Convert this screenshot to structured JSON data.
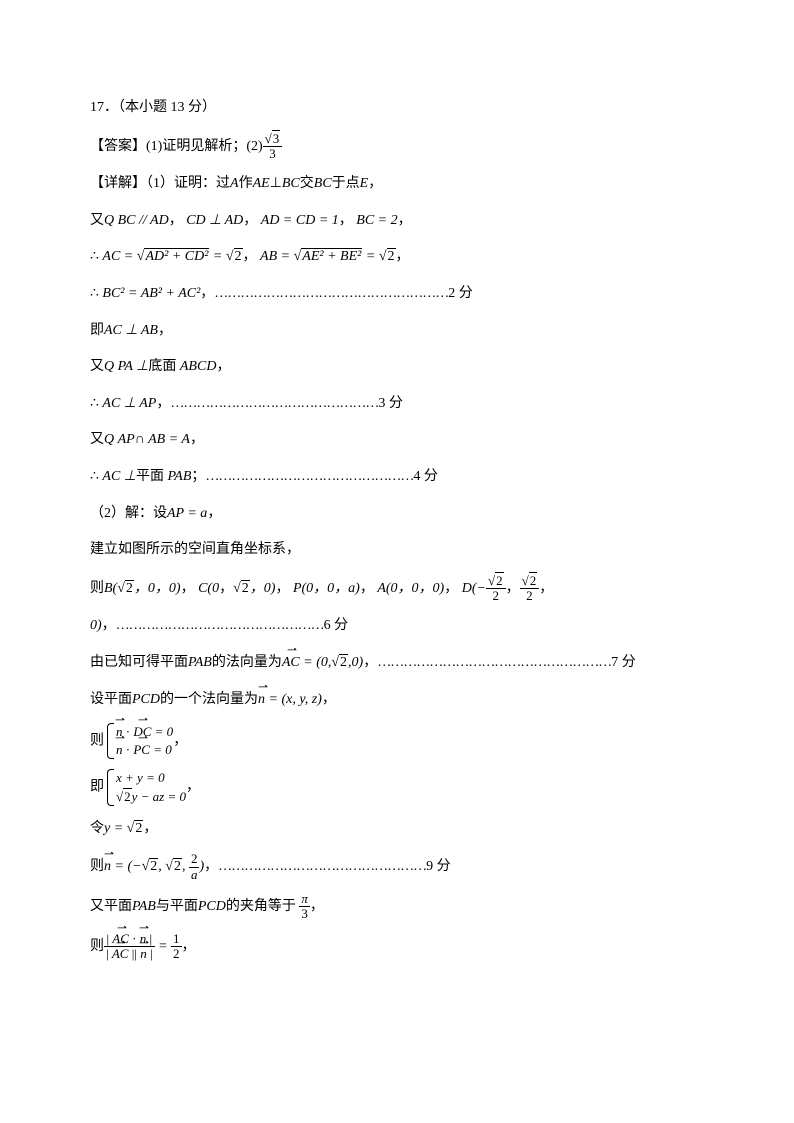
{
  "title": "17．（本小题 13 分）",
  "answer_label": "【答案】",
  "answer_p1": "(1)证明见解析；(2)",
  "detail_label": "【详解】",
  "proof_intro": "（1）证明：过",
  "l1_a": "A",
  "l1_b": "作",
  "l1_c": "AE",
  "l1_d": "⊥",
  "l1_e": "BC",
  "l1_f": "交",
  "l1_g": "BC",
  "l1_h": "于点",
  "l1_i": "E",
  "l1_j": "，",
  "l2_a": "又",
  "l2_b": "Q",
  "l2_c": "BC // AD",
  "l2_d": "，",
  "l2_e": "CD ⊥ AD",
  "l2_f": "，",
  "l2_g": "AD = CD = 1",
  "l2_h": "，",
  "l2_i": "BC = 2",
  "l2_j": "，",
  "l3_a": "∴",
  "l3_b": "AC = ",
  "l3_c": "AD² + CD²",
  "l3_d": " = ",
  "l3_e": "2",
  "l3_f": "，",
  "l3_g": "AB = ",
  "l3_h": "AE² + BE²",
  "l3_i": " = ",
  "l3_j": "2",
  "l3_k": "，",
  "l4_a": "∴",
  "l4_b": "BC² = AB² + AC²",
  "l4_c": "，",
  "l4_dots": "………………………………………………",
  "l4_score": "2 分",
  "l5_a": "即",
  "l5_b": "AC ⊥ AB",
  "l5_c": "，",
  "l6_a": "又",
  "l6_b": "Q",
  "l6_c": "PA ⊥",
  "l6_d": "底面",
  "l6_e": "ABCD",
  "l6_f": "，",
  "l7_a": "∴",
  "l7_b": "AC ⊥ AP",
  "l7_c": "，",
  "l7_dots": "…………………………………………",
  "l7_score": "3 分",
  "l8_a": "又",
  "l8_b": "Q",
  "l8_c": "AP",
  "l8_d": "∩",
  "l8_e": " AB = A",
  "l8_f": "，",
  "l9_a": "∴",
  "l9_b": "AC ⊥",
  "l9_c": "平面",
  "l9_d": "PAB",
  "l9_e": "；",
  "l9_dots": "…………………………………………",
  "l9_score": "4 分",
  "l10_a": "（2）解：设",
  "l10_b": "AP = a",
  "l10_c": "，",
  "l11": "建立如图所示的空间直角坐标系，",
  "l12_a": "则",
  "l12_b": "B(",
  "l12_c": "2",
  "l12_d": "，0，0)",
  "l12_e": "，",
  "l12_f": "C(0",
  "l12_g": "，",
  "l12_h": "2",
  "l12_i": "，0)",
  "l12_j": "，",
  "l12_k": "P(0，0，a)",
  "l12_l": "，",
  "l12_m": "A(0，0，0)",
  "l12_n": "，",
  "l12_o": "D(−",
  "l12_p": "2",
  "l12_q": "，",
  "l12_r": "2",
  "l12_s": "，",
  "l13_a": "0)",
  "l13_b": "，",
  "l13_dots": "…………………………………………",
  "l13_score": "6 分",
  "l14_a": "由已知可得平面",
  "l14_b": "PAB",
  "l14_c": "的法向量为",
  "l14_d": "AC",
  "l14_e": " = (0,",
  "l14_f": "2",
  "l14_g": ",0)",
  "l14_h": "，",
  "l14_dots": "………………………………………………",
  "l14_score": "7 分",
  "l15_a": "设平面",
  "l15_b": "PCD",
  "l15_c": "的一个法向量为",
  "l15_d": "n",
  "l15_e": " = (x, y, z)",
  "l15_f": "，",
  "l16_a": "则",
  "l16_b1": "n",
  "l16_b2": " · ",
  "l16_b3": "DC",
  "l16_b4": " = 0",
  "l16_c1": "n",
  "l16_c2": " · ",
  "l16_c3": "PC",
  "l16_c4": " = 0",
  "l16_d": "，",
  "l17_a": "即",
  "l17_b": "x + y = 0",
  "l17_c": "2",
  "l17_c2": "y − az = 0",
  "l17_d": "，",
  "l18_a": "令",
  "l18_b": "y = ",
  "l18_c": "2",
  "l18_d": "，",
  "l19_a": "则",
  "l19_b": "n",
  "l19_c": " = (−",
  "l19_d": "2",
  "l19_e": ", ",
  "l19_f": "2",
  "l19_g": ", ",
  "l19_h": "2",
  "l19_i": "a",
  "l19_j": ")",
  "l19_k": "，",
  "l19_dots": "…………………………………………",
  "l19_score": "9 分",
  "l20_a": "又平面",
  "l20_b": "PAB",
  "l20_c": "与平面",
  "l20_d": "PCD",
  "l20_e": "的夹角等于",
  "l20_f": "π",
  "l20_g": "3",
  "l20_h": "，",
  "l21_a": "则",
  "l21_b": "AC",
  "l21_c": " · ",
  "l21_d": "n",
  "l21_e": "AC",
  "l21_f": "n",
  "l21_g": " = ",
  "l21_h": "1",
  "l21_i": "2",
  "l21_j": "，",
  "ans_num": "3",
  "ans_den": "3",
  "two": "2"
}
